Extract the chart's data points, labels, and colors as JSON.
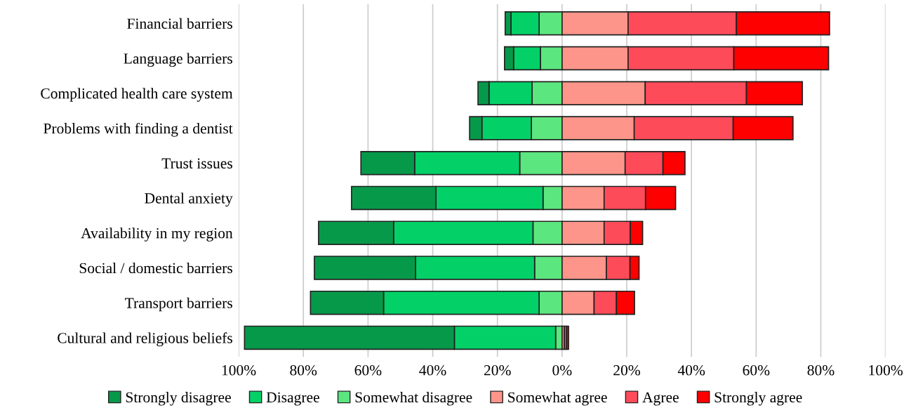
{
  "chart_data": {
    "type": "bar",
    "orientation": "horizontal",
    "stacked": true,
    "categories": [
      "Financial barriers",
      "Language barriers",
      "Complicated health care system",
      "Problems with finding a dentist",
      "Trust issues",
      "Dental anxiety",
      "Availability in my region",
      "Social / domestic barriers",
      "Transport barriers",
      "Cultural and religious beliefs"
    ],
    "series": [
      {
        "name": "Somewhat disagree",
        "color": "#5ce67f",
        "values": [
          -7.1,
          -6.7,
          -9.3,
          -9.5,
          -13.1,
          -5.9,
          -9.0,
          -8.5,
          -7.1,
          -2.0
        ]
      },
      {
        "name": "Disagree",
        "color": "#03d167",
        "values": [
          -8.7,
          -8.3,
          -13.3,
          -15.3,
          -32.5,
          -33.1,
          -43.1,
          -36.8,
          -48.1,
          -31.3
        ]
      },
      {
        "name": "Strongly disagree",
        "color": "#07994a",
        "values": [
          -1.8,
          -2.8,
          -3.4,
          -3.8,
          -16.6,
          -26.1,
          -23.2,
          -31.3,
          -22.6,
          -64.9
        ]
      },
      {
        "name": "Somewhat agree",
        "color": "#fd958a",
        "values": [
          20.4,
          20.4,
          25.7,
          22.3,
          19.5,
          13.0,
          13.0,
          13.7,
          9.9,
          0.7
        ]
      },
      {
        "name": "Agree",
        "color": "#fe4b5a",
        "values": [
          33.5,
          32.7,
          31.3,
          30.6,
          11.7,
          12.8,
          8.1,
          7.3,
          6.9,
          0.7
        ]
      },
      {
        "name": "Strongly agree",
        "color": "#fe0000",
        "values": [
          28.8,
          29.3,
          17.3,
          18.5,
          6.8,
          9.3,
          3.8,
          2.8,
          5.6,
          0.6
        ]
      }
    ],
    "xlim": [
      -100,
      100
    ],
    "xticks": [
      {
        "value": -100,
        "label": "100%"
      },
      {
        "value": -80,
        "label": "80%"
      },
      {
        "value": -60,
        "label": "60%"
      },
      {
        "value": -40,
        "label": "40%"
      },
      {
        "value": -20,
        "label": "20%"
      },
      {
        "value": 0,
        "label": "0%"
      },
      {
        "value": 20,
        "label": "20%"
      },
      {
        "value": 40,
        "label": "40%"
      },
      {
        "value": 60,
        "label": "60%"
      },
      {
        "value": 80,
        "label": "80%"
      },
      {
        "value": 100,
        "label": "100%"
      }
    ],
    "grid": "x",
    "legend": "bottom"
  }
}
